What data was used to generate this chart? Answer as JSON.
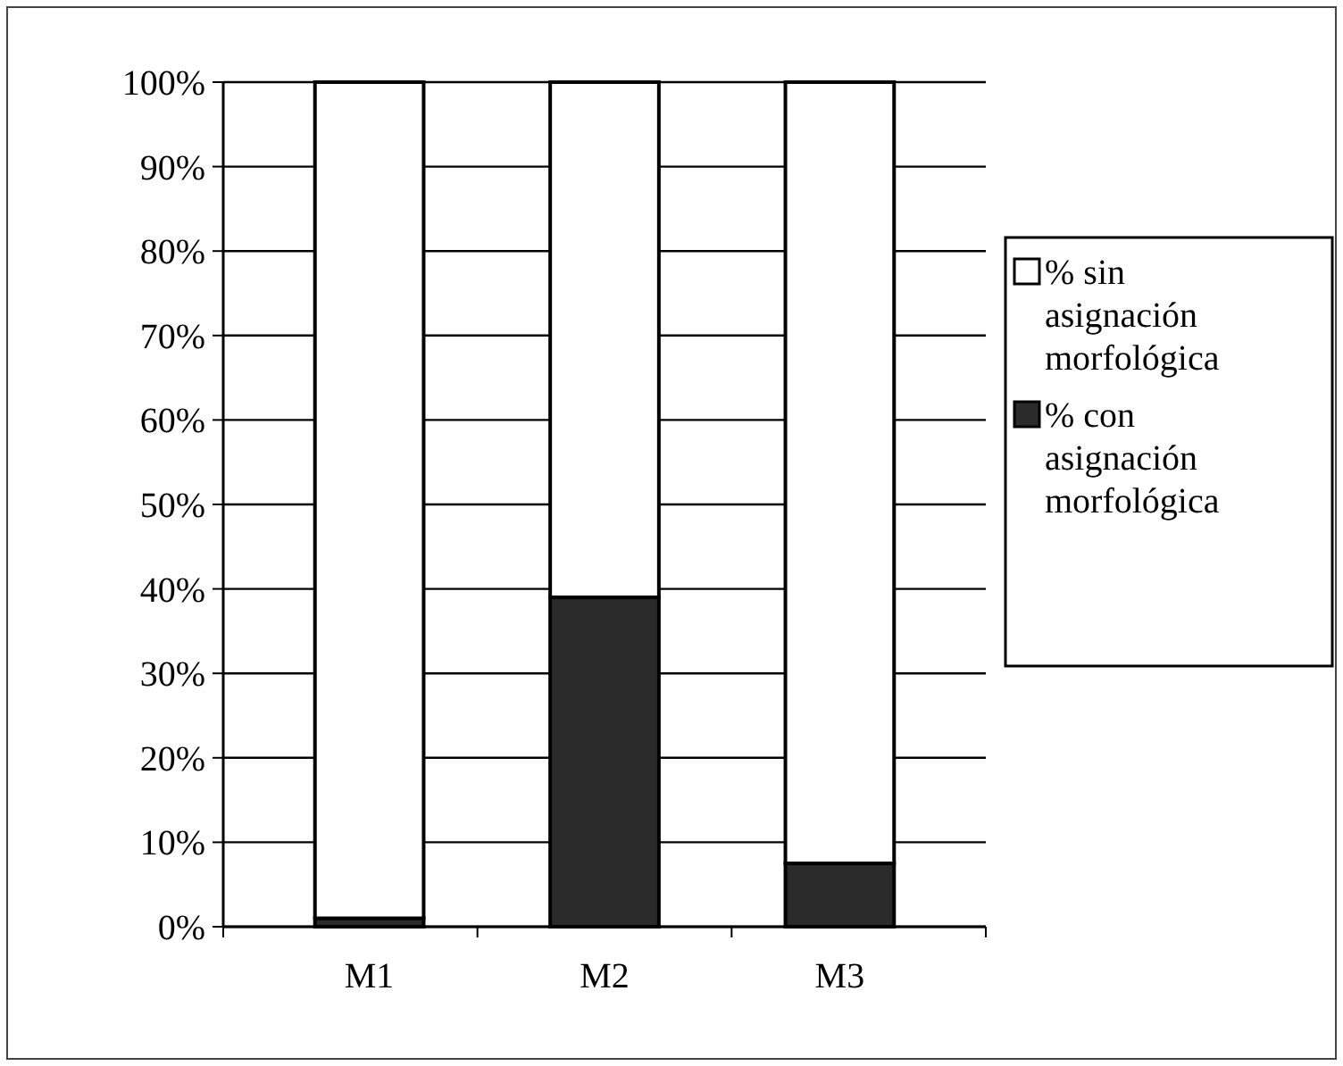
{
  "chart_data": {
    "type": "bar",
    "stacked": true,
    "categories": [
      "M1",
      "M2",
      "M3"
    ],
    "series": [
      {
        "name": "% con asignación morfológica",
        "color": "#2b2b2b",
        "values": [
          1,
          39,
          7.5
        ]
      },
      {
        "name": "% sin asignación morfológica",
        "color": "#ffffff",
        "values": [
          99,
          61,
          92.5
        ]
      }
    ],
    "ylim": [
      0,
      100
    ],
    "yticks": [
      {
        "value": 0,
        "label": "0%"
      },
      {
        "value": 10,
        "label": "10%"
      },
      {
        "value": 20,
        "label": "20%"
      },
      {
        "value": 30,
        "label": "30%"
      },
      {
        "value": 40,
        "label": "40%"
      },
      {
        "value": 50,
        "label": "50%"
      },
      {
        "value": 60,
        "label": "60%"
      },
      {
        "value": 70,
        "label": "70%"
      },
      {
        "value": 80,
        "label": "80%"
      },
      {
        "value": 90,
        "label": "90%"
      },
      {
        "value": 100,
        "label": "100%"
      }
    ],
    "grid": "y",
    "legend": "right"
  }
}
